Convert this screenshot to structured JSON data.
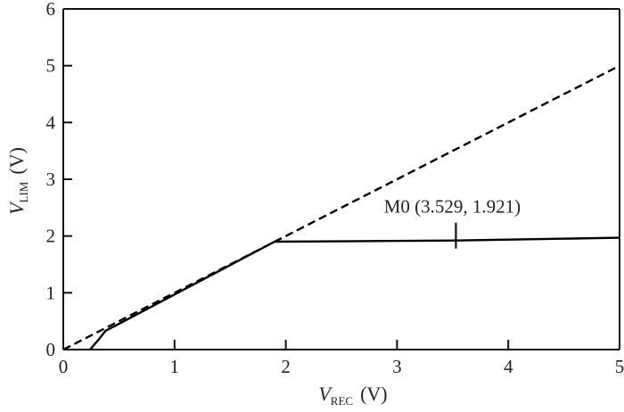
{
  "chart_data": {
    "type": "line",
    "xlabel": {
      "main": "V",
      "sub": "REC",
      "unit": "(V)"
    },
    "ylabel": {
      "main": "V",
      "sub": "LIM",
      "unit": "(V)"
    },
    "xlim": [
      0,
      5
    ],
    "ylim": [
      0,
      6
    ],
    "xticks": [
      0,
      1,
      2,
      3,
      4,
      5
    ],
    "yticks": [
      0,
      1,
      2,
      3,
      4,
      5,
      6
    ],
    "xtick_labels": [
      "0",
      "1",
      "2",
      "3",
      "4",
      "5"
    ],
    "ytick_labels": [
      "0",
      "1",
      "2",
      "3",
      "4",
      "5",
      "6"
    ],
    "grid": false,
    "legend": "none",
    "series": [
      {
        "style": "dashed",
        "color": "#000000",
        "points": [
          [
            0.0,
            0.0
          ],
          [
            5.0,
            5.0
          ]
        ]
      },
      {
        "style": "solid",
        "color": "#000000",
        "points": [
          [
            0.24,
            0.0
          ],
          [
            0.32,
            0.18
          ],
          [
            0.38,
            0.33
          ],
          [
            1.9,
            1.9
          ],
          [
            3.529,
            1.921
          ],
          [
            5.0,
            1.97
          ]
        ]
      }
    ],
    "annotations": [
      {
        "text": "M0 (3.529, 1.921)",
        "x": 3.529,
        "y": 1.921
      }
    ]
  }
}
